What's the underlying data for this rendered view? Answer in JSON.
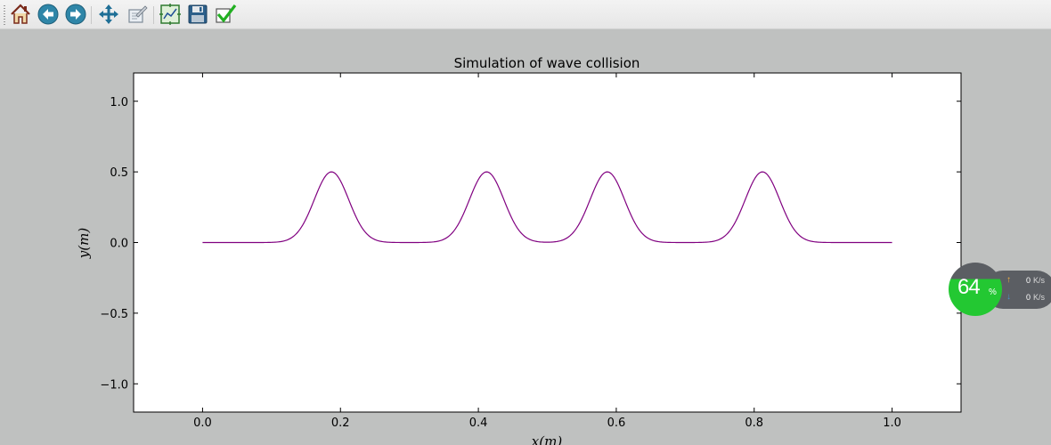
{
  "toolbar": {
    "buttons": [
      {
        "name": "home",
        "icon": "home-icon"
      },
      {
        "name": "back",
        "icon": "back-arrow-icon"
      },
      {
        "name": "forward",
        "icon": "forward-arrow-icon"
      },
      {
        "name": "pan",
        "icon": "move-arrows-icon"
      },
      {
        "name": "zoom",
        "icon": "zoom-rect-icon"
      },
      {
        "name": "configure-subplots",
        "icon": "subplots-icon"
      },
      {
        "name": "save",
        "icon": "floppy-disk-icon"
      },
      {
        "name": "edit-parameters",
        "icon": "checkmark-icon"
      }
    ]
  },
  "chart_data": {
    "type": "line",
    "title": "Simulation of wave collision",
    "xlabel": "x(m)",
    "ylabel": "y(m)",
    "xlim": [
      -0.1,
      1.1
    ],
    "ylim": [
      -1.2,
      1.2
    ],
    "xticks": [
      "0.0",
      "0.2",
      "0.4",
      "0.6",
      "0.8",
      "1.0"
    ],
    "yticks": [
      "1.0",
      "0.5",
      "0.0",
      "−0.5",
      "−1.0"
    ],
    "series": [
      {
        "color": "#800080",
        "x_range": [
          0.0,
          1.0
        ],
        "pulses": [
          {
            "center": 0.187,
            "amplitude": 0.5
          },
          {
            "center": 0.412,
            "amplitude": 0.5
          },
          {
            "center": 0.587,
            "amplitude": 0.5
          },
          {
            "center": 0.812,
            "amplitude": 0.5
          }
        ],
        "baseline": 0.0
      }
    ],
    "grid": false,
    "legend": "none"
  },
  "widget": {
    "cpu_percent": "64",
    "percent_sign": "%",
    "upload_value": "0",
    "upload_unit": "K/s",
    "download_value": "0",
    "download_unit": "K/s",
    "colors": {
      "ok": "#23c832",
      "bg": "#5b5e63",
      "up_arrow": "#f0b040",
      "down_arrow": "#4a90c8"
    }
  }
}
